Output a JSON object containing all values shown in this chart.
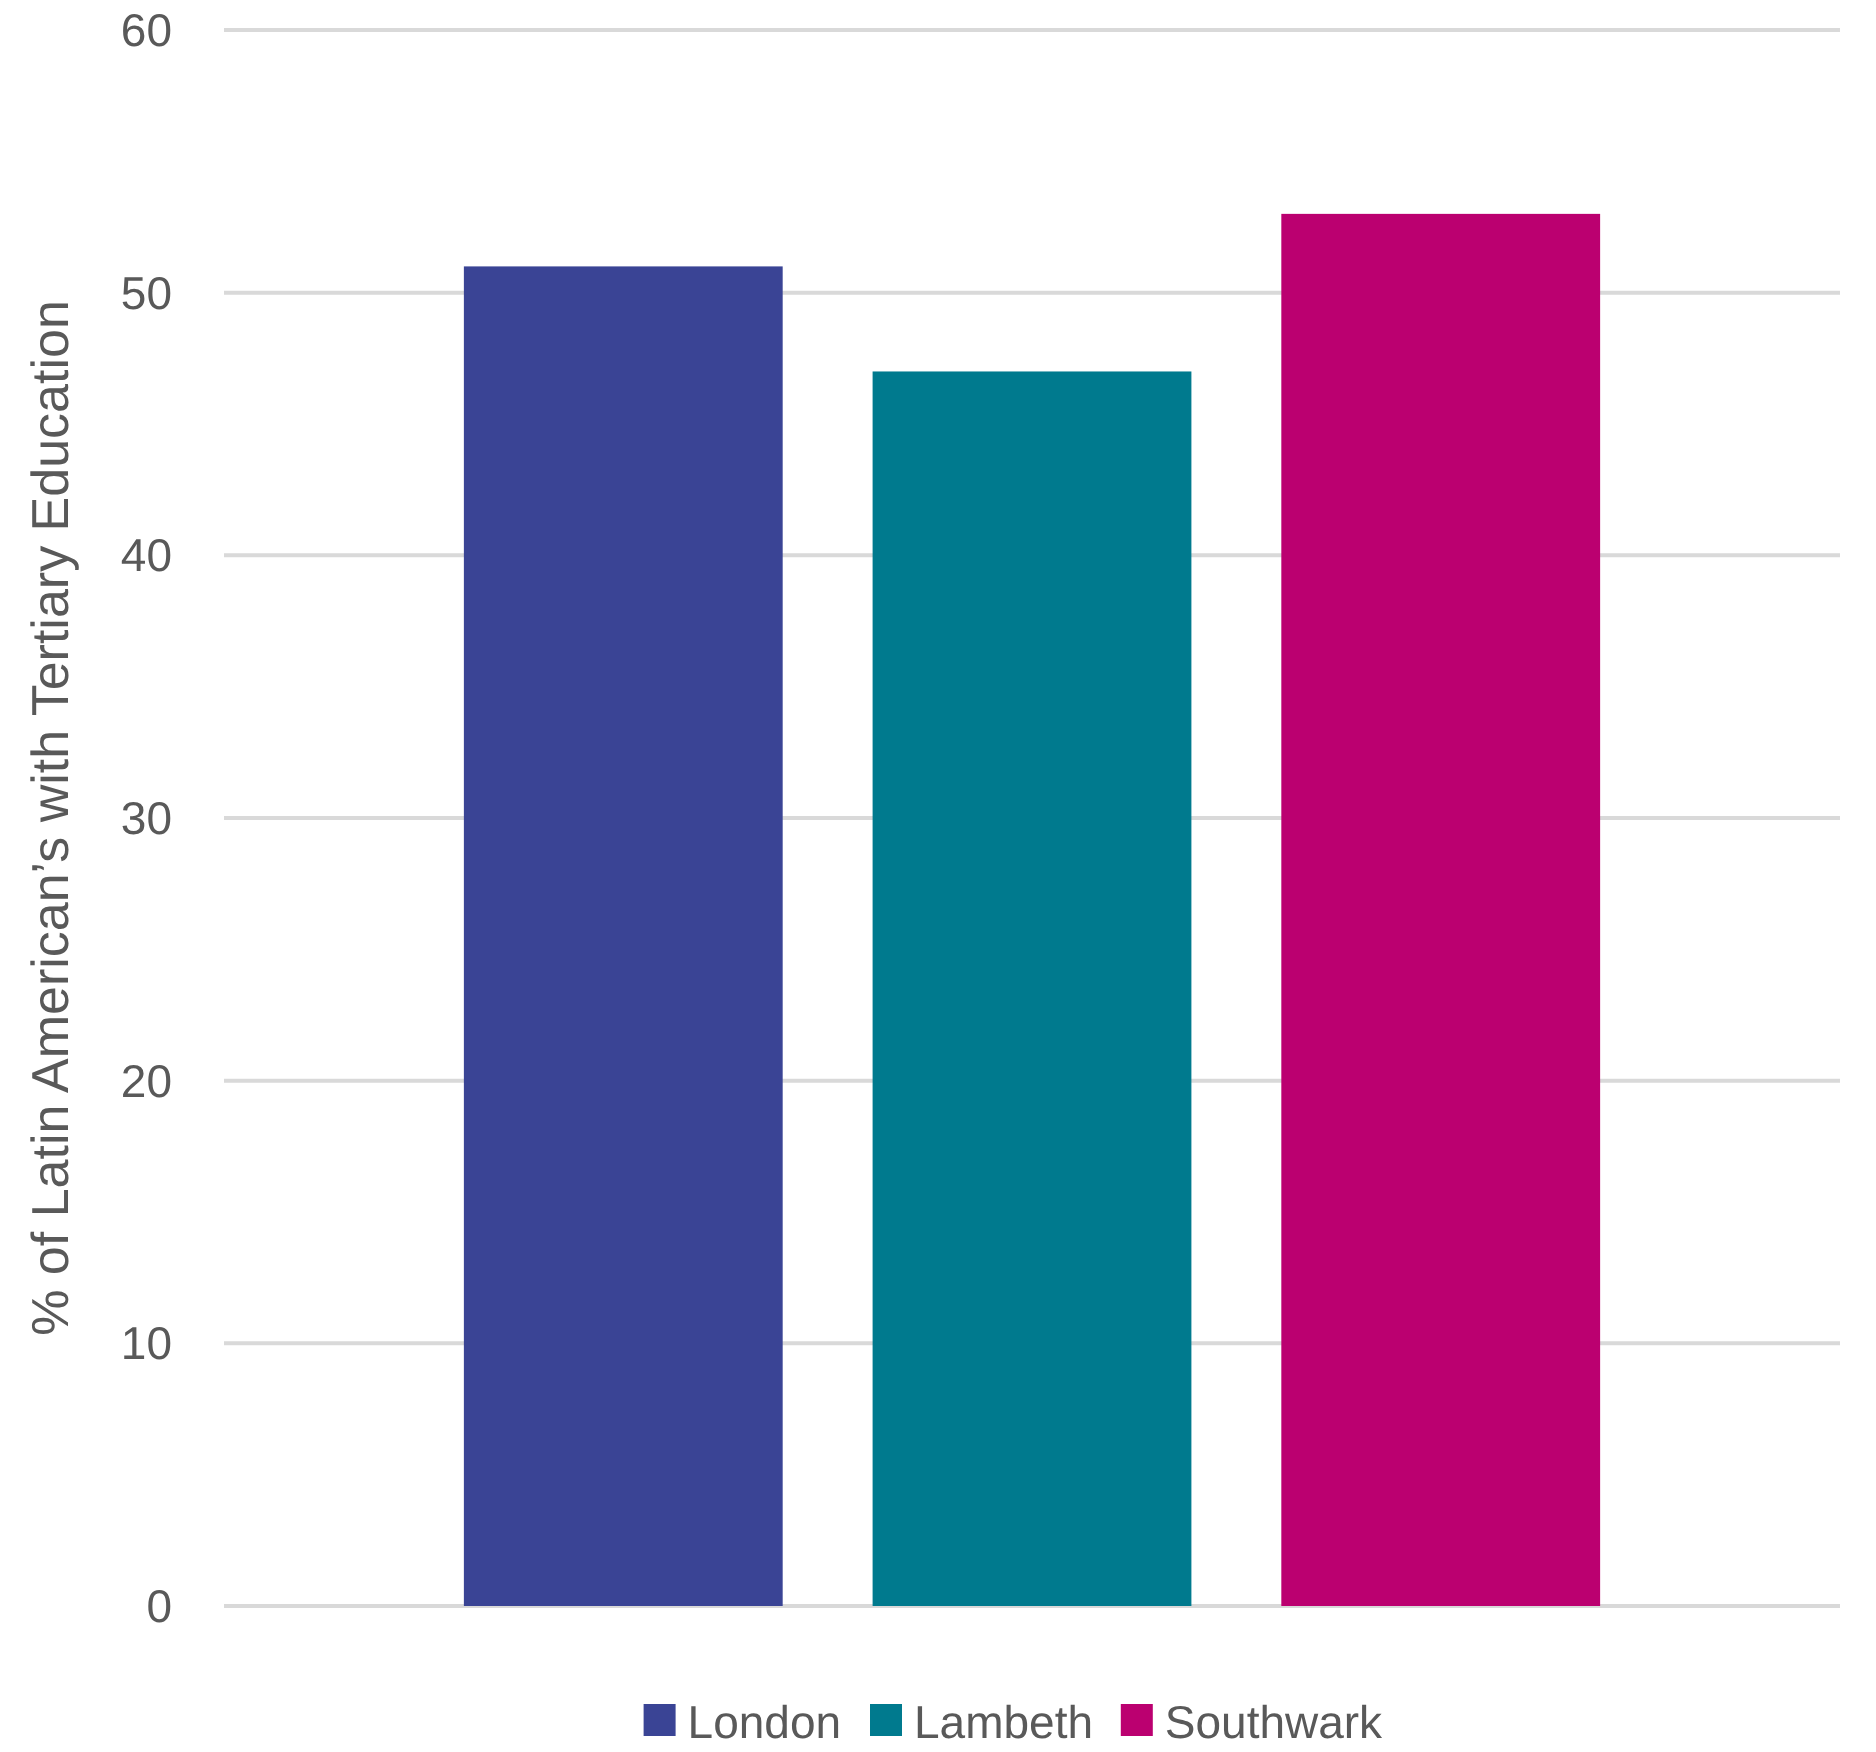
{
  "chart_data": {
    "type": "bar",
    "ylabel": "% of Latin American’s with Tertiary Education",
    "categories": [
      null
    ],
    "series": [
      {
        "name": "London",
        "color": "#3a4495",
        "values": [
          51
        ]
      },
      {
        "name": "Lambeth",
        "color": "#007a8e",
        "values": [
          47
        ]
      },
      {
        "name": "Southwark",
        "color": "#bb0070",
        "values": [
          53
        ]
      }
    ],
    "ylim": [
      0,
      60
    ],
    "yticks": [
      0,
      10,
      20,
      30,
      40,
      50,
      60
    ],
    "grid": "y",
    "legend": "bottom"
  }
}
